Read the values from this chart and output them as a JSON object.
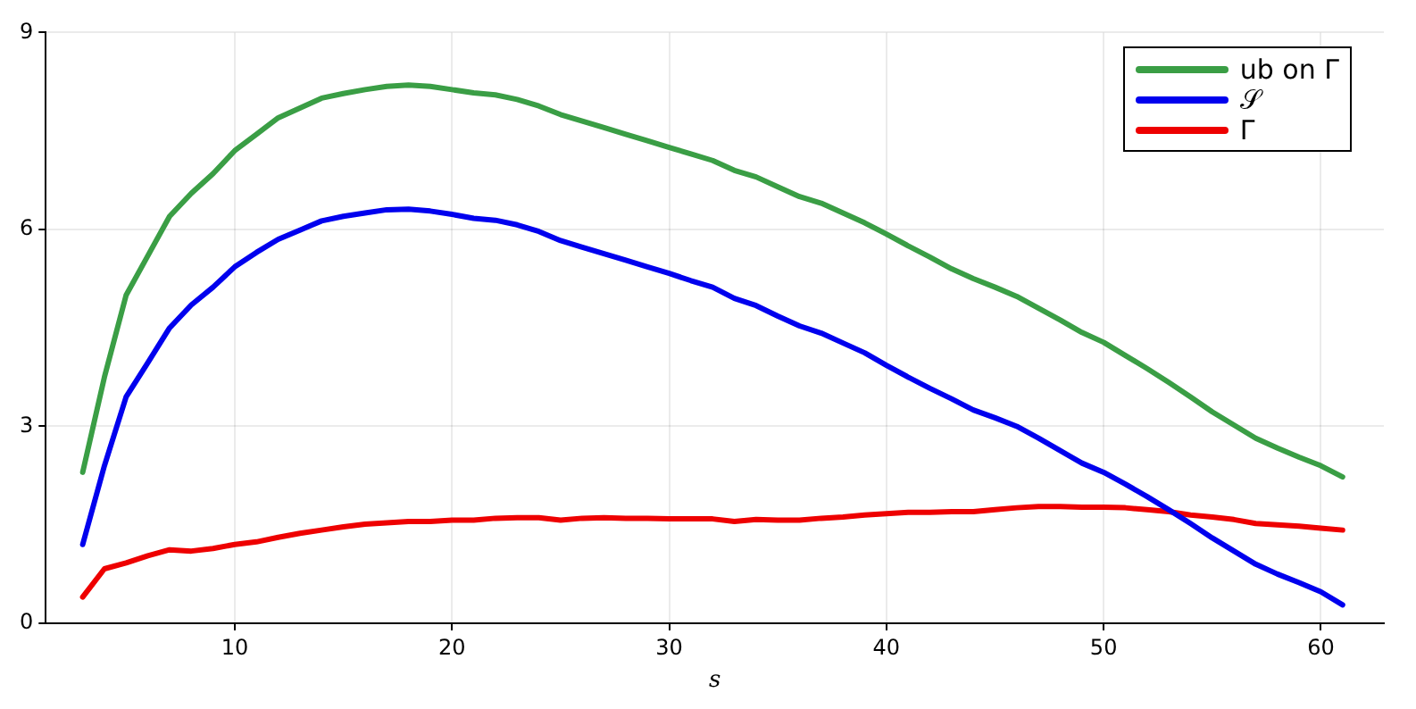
{
  "chart_data": {
    "type": "line",
    "xlabel": "s",
    "xlim": [
      1.3,
      62.9
    ],
    "xticks": [
      10,
      20,
      30,
      40,
      50,
      60
    ],
    "ylim": [
      0,
      9
    ],
    "yticks": [
      0,
      3,
      6,
      9
    ],
    "grid": true,
    "legend": "top right",
    "marker": "none",
    "line_style": "solid",
    "x": [
      3,
      4,
      5,
      6,
      7,
      8,
      9,
      10,
      11,
      12,
      13,
      14,
      15,
      16,
      17,
      18,
      19,
      20,
      21,
      22,
      23,
      24,
      25,
      26,
      27,
      28,
      29,
      30,
      31,
      32,
      33,
      34,
      35,
      36,
      37,
      38,
      39,
      40,
      41,
      42,
      43,
      44,
      45,
      46,
      47,
      48,
      49,
      50,
      51,
      52,
      53,
      54,
      55,
      56,
      57,
      58,
      59,
      60,
      61
    ],
    "series": [
      {
        "name": "ub on Γ",
        "color": "#3a9e45",
        "values": [
          2.3,
          3.75,
          5.0,
          5.6,
          6.2,
          6.55,
          6.85,
          7.2,
          7.45,
          7.7,
          7.85,
          8.0,
          8.07,
          8.13,
          8.18,
          8.2,
          8.18,
          8.13,
          8.08,
          8.05,
          7.98,
          7.88,
          7.75,
          7.65,
          7.55,
          7.45,
          7.35,
          7.25,
          7.15,
          7.05,
          6.9,
          6.8,
          6.65,
          6.5,
          6.4,
          6.25,
          6.1,
          5.93,
          5.75,
          5.58,
          5.4,
          5.25,
          5.12,
          4.98,
          4.8,
          4.62,
          4.43,
          4.28,
          4.08,
          3.88,
          3.67,
          3.45,
          3.22,
          3.02,
          2.82,
          2.67,
          2.53,
          2.4,
          2.23
        ]
      },
      {
        "name": "𝒮",
        "color": "#0000ee",
        "values": [
          1.2,
          2.4,
          3.45,
          3.97,
          4.5,
          4.85,
          5.12,
          5.43,
          5.65,
          5.85,
          5.99,
          6.13,
          6.2,
          6.25,
          6.3,
          6.31,
          6.28,
          6.23,
          6.17,
          6.14,
          6.07,
          5.97,
          5.83,
          5.73,
          5.63,
          5.53,
          5.43,
          5.33,
          5.22,
          5.12,
          4.95,
          4.84,
          4.68,
          4.53,
          4.42,
          4.27,
          4.12,
          3.93,
          3.75,
          3.58,
          3.42,
          3.25,
          3.13,
          3.0,
          2.82,
          2.63,
          2.44,
          2.3,
          2.12,
          1.93,
          1.73,
          1.52,
          1.3,
          1.1,
          0.9,
          0.75,
          0.62,
          0.48,
          0.28
        ]
      },
      {
        "name": "Γ",
        "color": "#ee0000",
        "values": [
          0.4,
          0.83,
          0.92,
          1.03,
          1.12,
          1.1,
          1.14,
          1.2,
          1.24,
          1.31,
          1.37,
          1.42,
          1.47,
          1.51,
          1.53,
          1.55,
          1.55,
          1.57,
          1.57,
          1.6,
          1.61,
          1.61,
          1.57,
          1.6,
          1.61,
          1.6,
          1.6,
          1.59,
          1.59,
          1.59,
          1.55,
          1.58,
          1.57,
          1.57,
          1.6,
          1.62,
          1.65,
          1.67,
          1.69,
          1.69,
          1.7,
          1.7,
          1.73,
          1.76,
          1.78,
          1.78,
          1.77,
          1.77,
          1.76,
          1.73,
          1.7,
          1.65,
          1.62,
          1.58,
          1.52,
          1.5,
          1.48,
          1.45,
          1.42
        ]
      }
    ]
  }
}
